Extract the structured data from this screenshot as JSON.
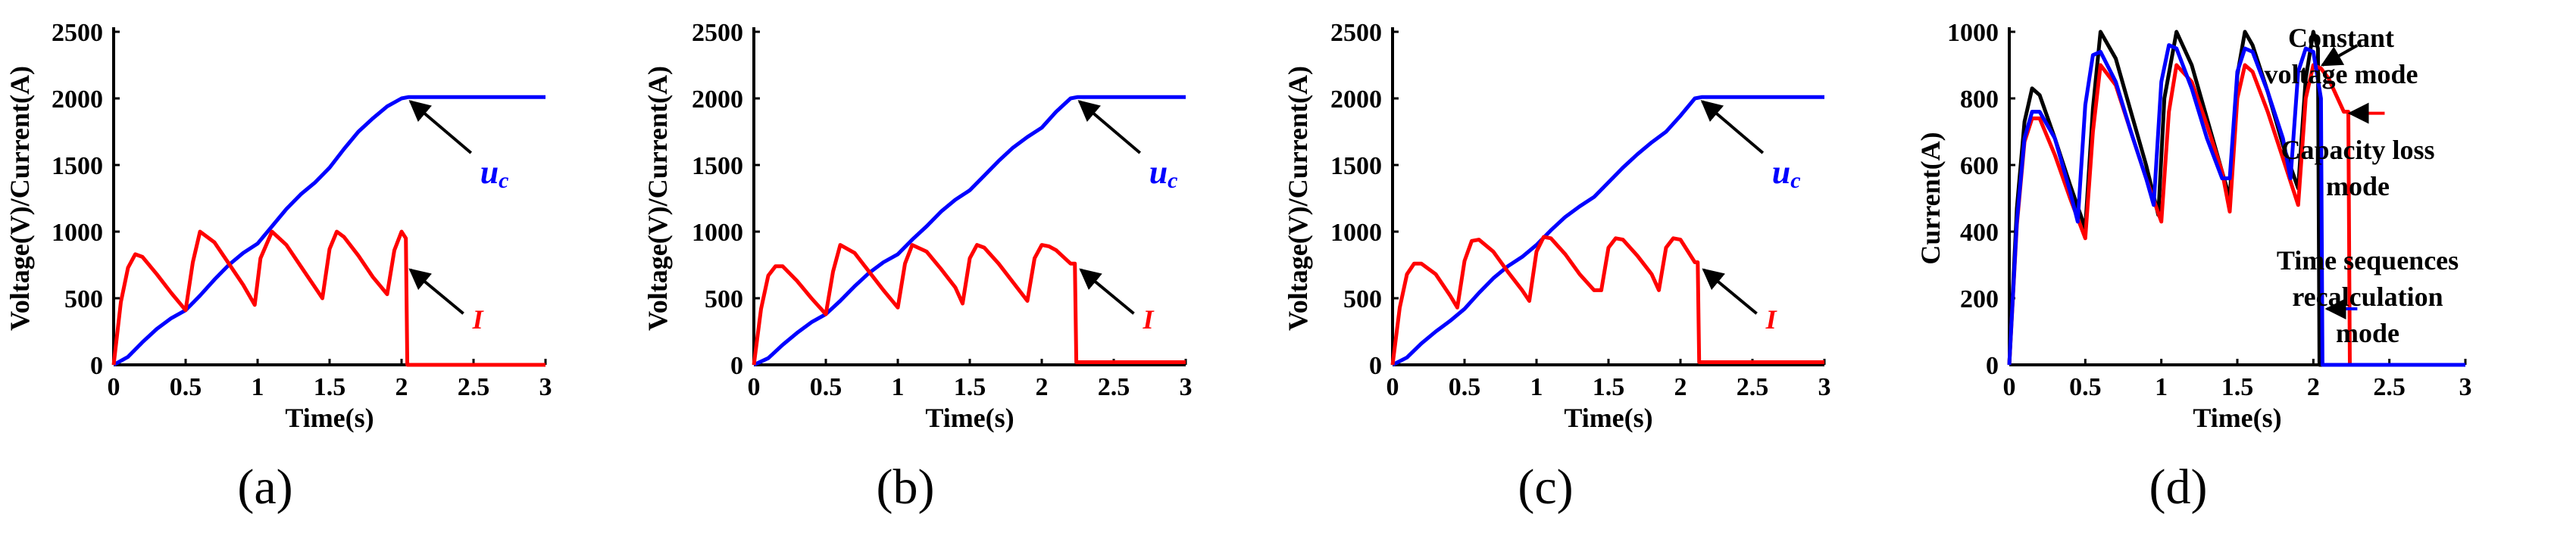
{
  "chart_data": [
    {
      "panel": "a",
      "type": "line",
      "xlabel": "Time(s)",
      "ylabel": "Voltage(V)/Current(A)",
      "xlim": [
        0,
        3
      ],
      "ylim": [
        0,
        2500
      ],
      "xticks": [
        "0",
        "0.5",
        "1",
        "1.5",
        "2",
        "2.5",
        "3"
      ],
      "yticks": [
        "0",
        "500",
        "1000",
        "1500",
        "2000",
        "2500"
      ],
      "series": [
        {
          "name": "Uc",
          "color": "#0000ff",
          "x": [
            0,
            0.1,
            0.2,
            0.3,
            0.4,
            0.5,
            0.6,
            0.7,
            0.8,
            0.9,
            1.0,
            1.1,
            1.2,
            1.3,
            1.4,
            1.5,
            1.6,
            1.7,
            1.8,
            1.9,
            2.0,
            2.05,
            2.5,
            3.0
          ],
          "values": [
            0,
            60,
            170,
            270,
            350,
            410,
            520,
            640,
            750,
            840,
            910,
            1040,
            1170,
            1280,
            1370,
            1480,
            1620,
            1750,
            1850,
            1940,
            2000,
            2010,
            2010,
            2010
          ]
        },
        {
          "name": "I",
          "color": "#ff0000",
          "x": [
            0,
            0.05,
            0.1,
            0.15,
            0.2,
            0.3,
            0.4,
            0.5,
            0.55,
            0.6,
            0.7,
            0.8,
            0.9,
            0.98,
            1.02,
            1.1,
            1.2,
            1.3,
            1.4,
            1.45,
            1.5,
            1.55,
            1.6,
            1.7,
            1.8,
            1.9,
            1.95,
            2.0,
            2.03,
            2.04,
            2.05,
            3.0
          ],
          "values": [
            0,
            470,
            730,
            830,
            810,
            680,
            540,
            410,
            770,
            1000,
            920,
            760,
            600,
            450,
            800,
            1000,
            900,
            740,
            580,
            500,
            870,
            1000,
            960,
            820,
            660,
            530,
            860,
            1000,
            950,
            0,
            0,
            0
          ]
        }
      ],
      "annotations": [
        {
          "label": "Uc",
          "color": "#0000ff",
          "arrow_to": [
            2.03,
            2000
          ]
        },
        {
          "label": "I",
          "color": "#ff0000",
          "arrow_to": [
            2.04,
            760
          ]
        }
      ]
    },
    {
      "panel": "b",
      "type": "line",
      "xlabel": "Time(s)",
      "ylabel": "Voltage(V)/Current(A)",
      "xlim": [
        0,
        3
      ],
      "ylim": [
        0,
        2500
      ],
      "xticks": [
        "0",
        "0.5",
        "1",
        "1.5",
        "2",
        "2.5",
        "3"
      ],
      "yticks": [
        "0",
        "500",
        "1000",
        "1500",
        "2000",
        "2500"
      ],
      "series": [
        {
          "name": "Uc",
          "color": "#0000ff",
          "x": [
            0,
            0.1,
            0.2,
            0.3,
            0.4,
            0.5,
            0.6,
            0.7,
            0.8,
            0.9,
            1.0,
            1.1,
            1.2,
            1.3,
            1.4,
            1.5,
            1.6,
            1.7,
            1.8,
            1.9,
            2.0,
            2.1,
            2.2,
            2.25,
            2.5,
            3.0
          ],
          "values": [
            0,
            50,
            150,
            240,
            320,
            380,
            480,
            590,
            690,
            770,
            830,
            940,
            1040,
            1150,
            1240,
            1310,
            1420,
            1530,
            1630,
            1710,
            1780,
            1900,
            2000,
            2010,
            2010,
            2010
          ]
        },
        {
          "name": "I",
          "color": "#ff0000",
          "x": [
            0,
            0.05,
            0.1,
            0.15,
            0.2,
            0.3,
            0.4,
            0.5,
            0.55,
            0.6,
            0.7,
            0.8,
            0.9,
            1.0,
            1.05,
            1.1,
            1.2,
            1.3,
            1.4,
            1.45,
            1.5,
            1.55,
            1.6,
            1.7,
            1.8,
            1.9,
            1.95,
            2.0,
            2.05,
            2.1,
            2.2,
            2.23,
            2.24,
            3.0
          ],
          "values": [
            0,
            420,
            670,
            740,
            740,
            630,
            500,
            380,
            700,
            900,
            840,
            700,
            560,
            430,
            760,
            900,
            850,
            720,
            580,
            460,
            800,
            900,
            880,
            760,
            620,
            480,
            800,
            900,
            890,
            860,
            760,
            760,
            20,
            20
          ]
        }
      ],
      "annotations": [
        {
          "label": "Uc",
          "color": "#0000ff",
          "arrow_to": [
            2.23,
            2000
          ]
        },
        {
          "label": "I",
          "color": "#ff0000",
          "arrow_to": [
            2.25,
            760
          ]
        }
      ]
    },
    {
      "panel": "c",
      "type": "line",
      "xlabel": "Time(s)",
      "ylabel": "Voltage(V)/Current(A)",
      "xlim": [
        0,
        3
      ],
      "ylim": [
        0,
        2500
      ],
      "xticks": [
        "0",
        "0.5",
        "1",
        "1.5",
        "2",
        "2.5",
        "3"
      ],
      "yticks": [
        "0",
        "500",
        "1000",
        "1500",
        "2000",
        "2500"
      ],
      "series": [
        {
          "name": "Uc",
          "color": "#0000ff",
          "x": [
            0,
            0.1,
            0.2,
            0.3,
            0.4,
            0.5,
            0.6,
            0.7,
            0.8,
            0.9,
            1.0,
            1.1,
            1.2,
            1.3,
            1.4,
            1.5,
            1.6,
            1.7,
            1.8,
            1.9,
            2.0,
            2.1,
            2.15,
            2.5,
            3.0
          ],
          "values": [
            0,
            55,
            160,
            250,
            330,
            420,
            540,
            650,
            740,
            810,
            900,
            1010,
            1110,
            1190,
            1260,
            1370,
            1480,
            1580,
            1670,
            1750,
            1870,
            2000,
            2010,
            2010,
            2010
          ]
        },
        {
          "name": "I",
          "color": "#ff0000",
          "x": [
            0,
            0.05,
            0.1,
            0.15,
            0.2,
            0.3,
            0.4,
            0.45,
            0.5,
            0.55,
            0.6,
            0.7,
            0.8,
            0.9,
            0.95,
            1.0,
            1.05,
            1.1,
            1.2,
            1.3,
            1.4,
            1.45,
            1.5,
            1.55,
            1.6,
            1.7,
            1.8,
            1.85,
            1.9,
            1.95,
            2.0,
            2.1,
            2.12,
            2.13,
            3.0
          ],
          "values": [
            0,
            430,
            680,
            760,
            760,
            680,
            520,
            430,
            780,
            930,
            940,
            850,
            700,
            560,
            480,
            850,
            960,
            950,
            830,
            680,
            560,
            560,
            880,
            950,
            940,
            820,
            680,
            560,
            880,
            950,
            940,
            770,
            770,
            20,
            20
          ]
        }
      ],
      "annotations": [
        {
          "label": "Uc",
          "color": "#0000ff",
          "arrow_to": [
            2.12,
            2000
          ]
        },
        {
          "label": "I",
          "color": "#ff0000",
          "arrow_to": [
            2.14,
            760
          ]
        }
      ]
    },
    {
      "panel": "d",
      "type": "line",
      "xlabel": "Time(s)",
      "ylabel": "Current(A)",
      "xlim": [
        0,
        3
      ],
      "ylim": [
        0,
        1000
      ],
      "xticks": [
        "0",
        "0.5",
        "1",
        "1.5",
        "2",
        "2.5",
        "3"
      ],
      "yticks": [
        "0",
        "200",
        "400",
        "600",
        "800",
        "1000"
      ],
      "series": [
        {
          "name": "Constant voltage mode",
          "color": "#000000",
          "x": [
            0,
            0.05,
            0.1,
            0.15,
            0.2,
            0.3,
            0.4,
            0.5,
            0.55,
            0.6,
            0.7,
            0.8,
            0.9,
            0.98,
            1.02,
            1.1,
            1.2,
            1.3,
            1.4,
            1.45,
            1.5,
            1.55,
            1.6,
            1.7,
            1.8,
            1.9,
            1.95,
            2.0,
            2.03,
            2.04,
            2.05,
            3.0
          ],
          "values": [
            0,
            470,
            730,
            830,
            810,
            680,
            540,
            410,
            770,
            1000,
            920,
            760,
            600,
            450,
            800,
            1000,
            900,
            740,
            580,
            500,
            870,
            1000,
            960,
            820,
            660,
            530,
            860,
            1000,
            950,
            0,
            0,
            0
          ]
        },
        {
          "name": "Capacity loss mode",
          "color": "#ff0000",
          "x": [
            0,
            0.05,
            0.1,
            0.15,
            0.2,
            0.3,
            0.4,
            0.5,
            0.55,
            0.6,
            0.7,
            0.8,
            0.9,
            1.0,
            1.05,
            1.1,
            1.2,
            1.3,
            1.4,
            1.45,
            1.5,
            1.55,
            1.6,
            1.7,
            1.8,
            1.9,
            1.95,
            2.0,
            2.05,
            2.1,
            2.2,
            2.23,
            2.24,
            3.0
          ],
          "values": [
            0,
            420,
            670,
            740,
            740,
            630,
            500,
            380,
            700,
            900,
            840,
            700,
            560,
            430,
            760,
            900,
            850,
            720,
            580,
            460,
            800,
            900,
            880,
            760,
            620,
            480,
            800,
            900,
            890,
            860,
            760,
            760,
            0,
            0
          ]
        },
        {
          "name": "Time sequences recalculation mode",
          "color": "#0000ff",
          "x": [
            0,
            0.05,
            0.1,
            0.15,
            0.2,
            0.3,
            0.4,
            0.45,
            0.5,
            0.55,
            0.6,
            0.7,
            0.8,
            0.9,
            0.95,
            1.0,
            1.05,
            1.1,
            1.2,
            1.3,
            1.4,
            1.45,
            1.5,
            1.55,
            1.6,
            1.7,
            1.8,
            1.85,
            1.9,
            1.95,
            2.0,
            2.05,
            2.06,
            3.0
          ],
          "values": [
            0,
            430,
            680,
            760,
            760,
            680,
            520,
            430,
            780,
            930,
            940,
            850,
            700,
            560,
            480,
            850,
            960,
            950,
            830,
            680,
            560,
            560,
            880,
            950,
            940,
            820,
            680,
            560,
            880,
            950,
            940,
            800,
            0,
            0
          ]
        }
      ],
      "annotations": [
        {
          "label": "Constant voltage mode",
          "color": "#000000",
          "arrow_to": [
            2.03,
            900
          ]
        },
        {
          "label": "Capacity loss mode",
          "color": "#ff0000",
          "arrow_to": [
            2.2,
            760
          ]
        },
        {
          "label": "Time sequences recalculation mode",
          "color": "#0000ff",
          "arrow_to": [
            2.06,
            200
          ]
        }
      ]
    }
  ],
  "panel_labels": [
    "(a)",
    "(b)",
    "(c)",
    "(d)"
  ],
  "annotation_text": {
    "uc_main": "U",
    "uc_sub": "c",
    "i": "I",
    "constant_1": "Constant",
    "constant_2": "voltage mode",
    "capacity_1": "Capacity loss",
    "capacity_2": "mode",
    "timeseq_1": "Time sequences",
    "timeseq_2": "recalculation",
    "timeseq_3": "mode"
  }
}
